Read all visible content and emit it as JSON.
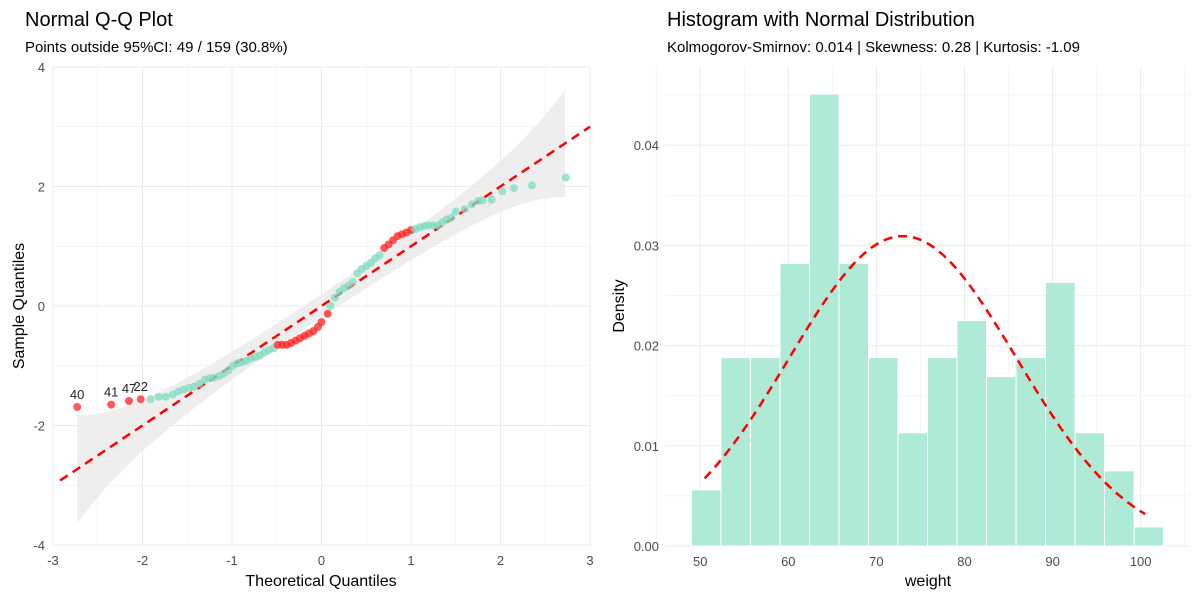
{
  "colors": {
    "point": "#7ddcc0",
    "outside": "#ff2020",
    "line": "#ff0000",
    "band": "#ebebeb",
    "bar": "#aeead6",
    "grid": "#ebebeb"
  },
  "chart_data": [
    {
      "type": "scatter",
      "title": "Normal Q-Q Plot",
      "subtitle": "Points outside 95%CI: 49 / 159 (30.8%)",
      "xlabel": "Theoretical Quantiles",
      "ylabel": "Sample Quantiles",
      "xlim": [
        -3,
        3
      ],
      "ylim": [
        -4,
        4
      ],
      "xticks": [
        "-3",
        "-2",
        "-1",
        "0",
        "1",
        "2",
        "3"
      ],
      "yticks": [
        "-4",
        "-2",
        "0",
        "2",
        "4"
      ],
      "grid": true,
      "n": 159,
      "conf_level": 0.95,
      "reference_line": {
        "intercept": 0,
        "slope": 1,
        "style": "dashed",
        "color": "#ff0000"
      },
      "points": [
        [
          -2.73,
          -1.69,
          1,
          "40"
        ],
        [
          -2.35,
          -1.65,
          1,
          "41"
        ],
        [
          -2.15,
          -1.59,
          1,
          "47"
        ],
        [
          -2.02,
          -1.56,
          1,
          "22"
        ],
        [
          -1.91,
          -1.56,
          0
        ],
        [
          -1.82,
          -1.52,
          0
        ],
        [
          -1.74,
          -1.52,
          0
        ],
        [
          -1.66,
          -1.48,
          0
        ],
        [
          -1.6,
          -1.43,
          0
        ],
        [
          -1.54,
          -1.4,
          0
        ],
        [
          -1.48,
          -1.37,
          0
        ],
        [
          -1.42,
          -1.35,
          0
        ],
        [
          -1.36,
          -1.3,
          0
        ],
        [
          -1.3,
          -1.23,
          0
        ],
        [
          -1.25,
          -1.21,
          0
        ],
        [
          -1.2,
          -1.2,
          0
        ],
        [
          -1.14,
          -1.17,
          0
        ],
        [
          -1.09,
          -1.13,
          0
        ],
        [
          -1.04,
          -1.08,
          0
        ],
        [
          -0.99,
          -1.0,
          0
        ],
        [
          -0.94,
          -0.96,
          0
        ],
        [
          -0.89,
          -0.94,
          0
        ],
        [
          -0.84,
          -0.92,
          0
        ],
        [
          -0.79,
          -0.88,
          0
        ],
        [
          -0.74,
          -0.85,
          0
        ],
        [
          -0.69,
          -0.83,
          0
        ],
        [
          -0.64,
          -0.78,
          0
        ],
        [
          -0.59,
          -0.74,
          0
        ],
        [
          -0.54,
          -0.71,
          0
        ],
        [
          -0.49,
          -0.65,
          1
        ],
        [
          -0.44,
          -0.65,
          1
        ],
        [
          -0.39,
          -0.65,
          1
        ],
        [
          -0.34,
          -0.62,
          1
        ],
        [
          -0.29,
          -0.58,
          1
        ],
        [
          -0.24,
          -0.54,
          1
        ],
        [
          -0.19,
          -0.5,
          1
        ],
        [
          -0.14,
          -0.46,
          1
        ],
        [
          -0.09,
          -0.42,
          1
        ],
        [
          -0.04,
          -0.35,
          1
        ],
        [
          0.0,
          -0.27,
          1
        ],
        [
          0.07,
          -0.13,
          1
        ],
        [
          0.1,
          0.0,
          0
        ],
        [
          0.15,
          0.14,
          0
        ],
        [
          0.2,
          0.24,
          0
        ],
        [
          0.25,
          0.3,
          0
        ],
        [
          0.3,
          0.34,
          0
        ],
        [
          0.35,
          0.4,
          0
        ],
        [
          0.4,
          0.55,
          0
        ],
        [
          0.45,
          0.62,
          0
        ],
        [
          0.5,
          0.67,
          0
        ],
        [
          0.55,
          0.72,
          0
        ],
        [
          0.6,
          0.8,
          0
        ],
        [
          0.65,
          0.85,
          0
        ],
        [
          0.7,
          0.97,
          1
        ],
        [
          0.75,
          1.03,
          1
        ],
        [
          0.8,
          1.1,
          1
        ],
        [
          0.85,
          1.17,
          1
        ],
        [
          0.9,
          1.2,
          1
        ],
        [
          0.95,
          1.23,
          1
        ],
        [
          1.0,
          1.27,
          1
        ],
        [
          1.05,
          1.29,
          0
        ],
        [
          1.1,
          1.32,
          0
        ],
        [
          1.15,
          1.34,
          0
        ],
        [
          1.2,
          1.35,
          0
        ],
        [
          1.25,
          1.35,
          0
        ],
        [
          1.3,
          1.35,
          0
        ],
        [
          1.35,
          1.4,
          0
        ],
        [
          1.4,
          1.45,
          0
        ],
        [
          1.45,
          1.48,
          0
        ],
        [
          1.5,
          1.58,
          0
        ],
        [
          1.6,
          1.62,
          0
        ],
        [
          1.68,
          1.7,
          0
        ],
        [
          1.75,
          1.76,
          0
        ],
        [
          1.8,
          1.77,
          0
        ],
        [
          1.9,
          1.78,
          0
        ],
        [
          2.02,
          1.92,
          0
        ],
        [
          2.15,
          1.97,
          0
        ],
        [
          2.35,
          2.02,
          0
        ],
        [
          2.73,
          2.15,
          0
        ]
      ]
    },
    {
      "type": "bar",
      "title": "Histogram with Normal Distribution",
      "subtitle": "Kolmogorov-Smirnov: 0.014 | Skewness: 0.28 | Kurtosis: -1.09",
      "xlabel": "weight",
      "ylabel": "Density",
      "xlim": [
        46,
        105.6
      ],
      "ylim": [
        0,
        0.0478
      ],
      "xticks": [
        "50",
        "60",
        "70",
        "80",
        "90",
        "100"
      ],
      "yticks": [
        "0.00",
        "0.01",
        "0.02",
        "0.03",
        "0.04"
      ],
      "grid": true,
      "bin_start": 49.0,
      "bin_width": 3.35,
      "densities": [
        0.0056,
        0.0188,
        0.0188,
        0.0282,
        0.0451,
        0.0282,
        0.0188,
        0.0113,
        0.0188,
        0.0225,
        0.0169,
        0.0188,
        0.0263,
        0.0113,
        0.0075,
        0.0019
      ],
      "normal_curve": {
        "mean": 73,
        "sd": 12.9,
        "x_range": [
          50.5,
          100.5
        ],
        "style": "dashed",
        "color": "#ff0000"
      }
    }
  ]
}
